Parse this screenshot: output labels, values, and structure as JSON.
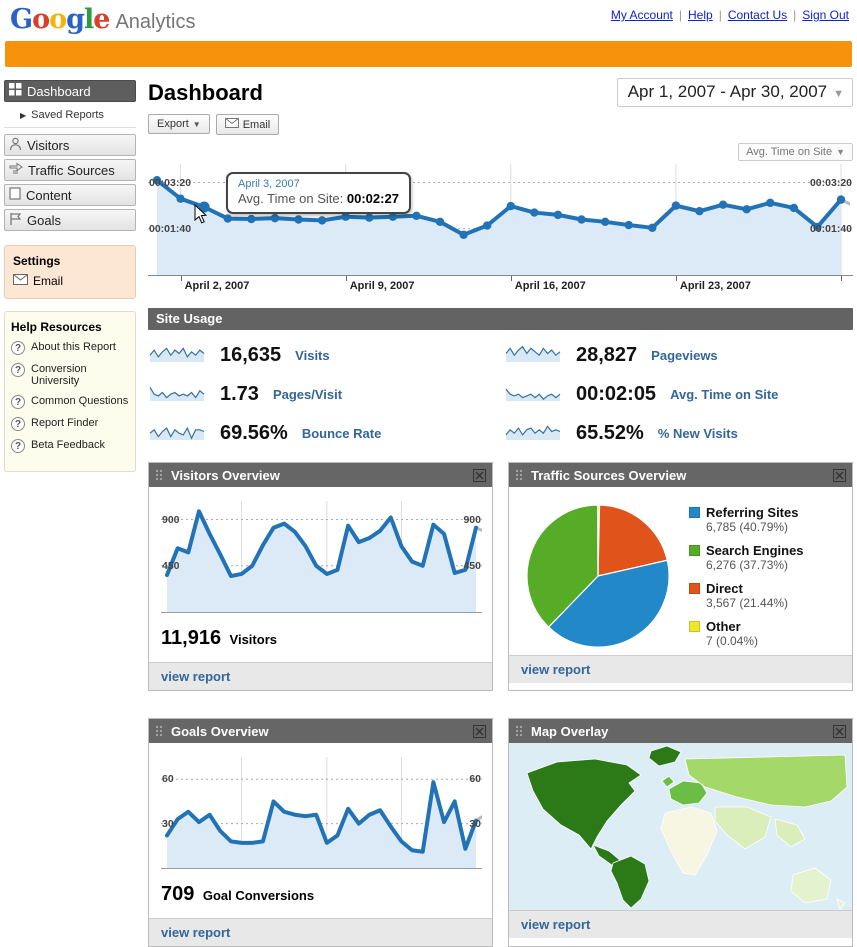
{
  "header": {
    "logo_google": "Google",
    "logo_analytics": "Analytics",
    "links": [
      "My Account",
      "Help",
      "Contact Us",
      "Sign Out"
    ],
    "link_color": "#1122cc",
    "banner_color": "#f7920d"
  },
  "sidebar": {
    "nav": [
      {
        "label": "Dashboard",
        "icon": "grid",
        "selected": true
      },
      {
        "label": "Visitors",
        "icon": "person",
        "selected": false
      },
      {
        "label": "Traffic Sources",
        "icon": "arrows",
        "selected": false
      },
      {
        "label": "Content",
        "icon": "page",
        "selected": false
      },
      {
        "label": "Goals",
        "icon": "flag",
        "selected": false
      }
    ],
    "saved_reports": "Saved Reports",
    "settings": {
      "title": "Settings",
      "email": "Email"
    },
    "help": {
      "title": "Help Resources",
      "items": [
        "About this Report",
        "Conversion University",
        "Common Questions",
        "Report Finder",
        "Beta Feedback"
      ]
    }
  },
  "main": {
    "title": "Dashboard",
    "date_range": "Apr 1, 2007 - Apr 30, 2007",
    "export_label": "Export",
    "email_label": "Email",
    "metric_selector": "Avg. Time on Site",
    "tooltip": {
      "date": "April 3, 2007",
      "label": "Avg. Time on Site:",
      "value": "00:02:27"
    }
  },
  "site_usage": {
    "title": "Site Usage",
    "metrics": [
      {
        "value": "16,635",
        "label": "Visits",
        "spark": [
          4,
          7,
          3,
          6,
          8,
          4,
          7,
          5,
          8,
          3,
          6,
          4,
          7,
          5
        ]
      },
      {
        "value": "28,827",
        "label": "Pageviews",
        "spark": [
          5,
          8,
          4,
          7,
          9,
          5,
          8,
          6,
          4,
          8,
          5,
          7,
          4,
          6
        ]
      },
      {
        "value": "1.73",
        "label": "Pages/Visit",
        "spark": [
          8,
          4,
          3,
          5,
          2,
          4,
          5,
          3,
          4,
          3,
          5,
          2,
          6,
          4
        ]
      },
      {
        "value": "00:02:05",
        "label": "Avg. Time on Site",
        "spark": [
          7,
          4,
          3,
          4,
          2,
          3,
          4,
          2,
          4,
          1,
          3,
          4,
          2,
          4
        ]
      },
      {
        "value": "69.56%",
        "label": "Bounce Rate",
        "spark": [
          4,
          6,
          2,
          5,
          7,
          2,
          6,
          4,
          3,
          7,
          1,
          6,
          6,
          5
        ]
      },
      {
        "value": "65.52%",
        "label": "% New Visits",
        "spark": [
          3,
          6,
          4,
          7,
          3,
          6,
          7,
          4,
          6,
          4,
          8,
          5,
          6,
          5
        ]
      }
    ]
  },
  "widgets": {
    "visitors": {
      "title": "Visitors Overview",
      "metric_value": "11,916",
      "metric_label": "Visitors",
      "link": "view report"
    },
    "traffic": {
      "title": "Traffic Sources Overview",
      "link": "view report",
      "legend": [
        {
          "name": "Referring Sites",
          "detail": "6,785 (40.79%)",
          "color": "#2388c8"
        },
        {
          "name": "Search Engines",
          "detail": "6,276 (37.73%)",
          "color": "#56ab27"
        },
        {
          "name": "Direct",
          "detail": "3,567 (21.44%)",
          "color": "#e0541c"
        },
        {
          "name": "Other",
          "detail": "7 (0.04%)",
          "color": "#efe72c"
        }
      ]
    },
    "goals": {
      "title": "Goals Overview",
      "metric_value": "709",
      "metric_label": "Goal Conversions",
      "link": "view report"
    },
    "map": {
      "title": "Map Overlay",
      "link": "view report",
      "palette": {
        "ocean": "#dcedf6",
        "dark": "#2b7a17",
        "medium": "#6abe45",
        "light": "#a4d96a",
        "pale": "#d9eebb",
        "paler": "#e4f3cf",
        "cream": "#f7f6e2"
      }
    }
  },
  "chart_data": [
    {
      "id": "timeline",
      "type": "line",
      "title": "Avg. Time on Site, April 1 - April 30, 2007",
      "values_seconds": [
        205,
        165,
        147,
        122,
        121,
        123,
        120,
        118,
        126,
        124,
        126,
        128,
        115,
        87,
        107,
        149,
        135,
        130,
        120,
        115,
        108,
        102,
        150,
        138,
        152,
        142,
        156,
        145,
        104,
        163
      ],
      "ylim": [
        0,
        240
      ],
      "yticks": [
        {
          "label": "00:03:20",
          "value": 200
        },
        {
          "label": "00:01:40",
          "value": 100
        }
      ],
      "xticks": [
        {
          "label": "April 2, 2007",
          "index": 1
        },
        {
          "label": "April 9, 2007",
          "index": 8
        },
        {
          "label": "April 16, 2007",
          "index": 15
        },
        {
          "label": "April 23, 2007",
          "index": 22
        },
        {
          "label": "",
          "index": 29
        }
      ],
      "highlight": {
        "index": 2,
        "date": "April 3, 2007",
        "value": "00:02:27"
      },
      "line_color": "#2273b5",
      "area_color": "#dbeaf6",
      "grid": true,
      "legend_position": "none"
    },
    {
      "id": "visitors",
      "type": "line",
      "title": "Visitors by day",
      "values": [
        360,
        620,
        580,
        980,
        760,
        560,
        350,
        370,
        450,
        650,
        820,
        860,
        780,
        640,
        450,
        370,
        410,
        840,
        680,
        720,
        790,
        920,
        640,
        490,
        450,
        850,
        760,
        380,
        410,
        820
      ],
      "ylim": [
        0,
        1080
      ],
      "yticks": [
        {
          "label": "900",
          "value": 900
        },
        {
          "label": "450",
          "value": 450
        }
      ],
      "line_color": "#2273b5",
      "area_color": "#dbeaf6",
      "grid": true
    },
    {
      "id": "traffic",
      "type": "pie",
      "title": "Traffic Sources share",
      "slices": [
        {
          "name": "Referring Sites",
          "value": 6785,
          "pct": 40.79,
          "color": "#2388c8"
        },
        {
          "name": "Search Engines",
          "value": 6276,
          "pct": 37.73,
          "color": "#56ab27"
        },
        {
          "name": "Direct",
          "value": 3567,
          "pct": 21.44,
          "color": "#e0541c"
        },
        {
          "name": "Other",
          "value": 7,
          "pct": 0.04,
          "color": "#efe72c"
        }
      ],
      "draw_order": [
        "Direct",
        "Referring Sites",
        "Search Engines",
        "Other"
      ],
      "legend_position": "right"
    },
    {
      "id": "goals",
      "type": "line",
      "title": "Goal Conversions by day",
      "values": [
        22,
        33,
        38,
        31,
        36,
        25,
        18,
        17,
        17,
        18,
        45,
        38,
        36,
        35,
        36,
        17,
        22,
        40,
        30,
        36,
        39,
        28,
        18,
        12,
        11,
        58,
        31,
        45,
        13,
        32
      ],
      "ylim": [
        0,
        75
      ],
      "yticks": [
        {
          "label": "60",
          "value": 60
        },
        {
          "label": "30",
          "value": 30
        }
      ],
      "line_color": "#2273b5",
      "area_color": "#dbeaf6",
      "grid": true
    }
  ]
}
